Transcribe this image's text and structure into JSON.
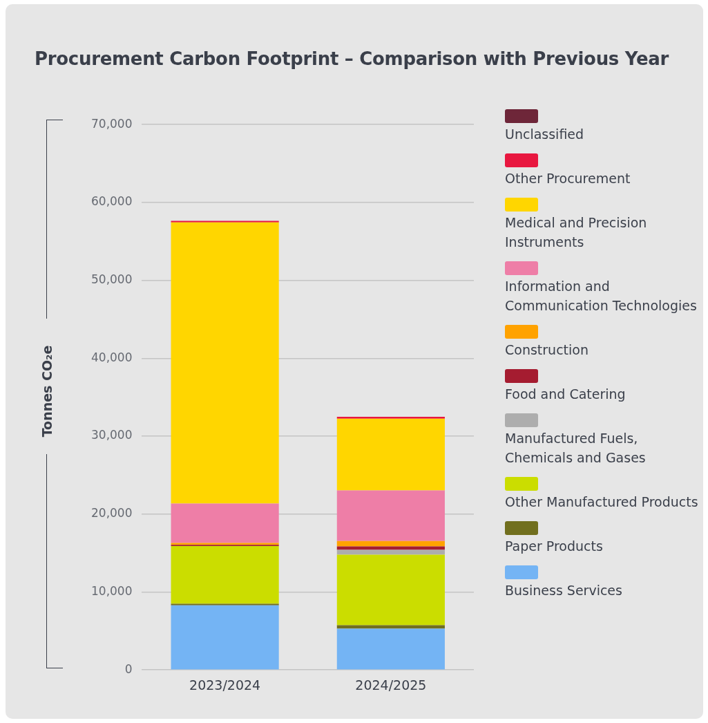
{
  "chart_data": {
    "type": "bar",
    "title": "Procurement Carbon Footprint – Comparison with Previous Year",
    "ylabel": "Tonnes CO₂e",
    "categories": [
      "2023/2024",
      "2024/2025"
    ],
    "stacked": true,
    "ylim": [
      0,
      70000
    ],
    "yticks": [
      {
        "value": 0,
        "label": "0"
      },
      {
        "value": 10000,
        "label": "10,000"
      },
      {
        "value": 20000,
        "label": "20,000"
      },
      {
        "value": 30000,
        "label": "30,000"
      },
      {
        "value": 40000,
        "label": "40,000"
      },
      {
        "value": 50000,
        "label": "50,000"
      },
      {
        "value": 60000,
        "label": "60,000"
      },
      {
        "value": 70000,
        "label": "70,000"
      }
    ],
    "grid": "y",
    "legend": "right",
    "series": [
      {
        "name": "Business Services",
        "color": "#74b4f4",
        "values": [
          8300,
          5300
        ]
      },
      {
        "name": "Paper Products",
        "color": "#716f1e",
        "values": [
          200,
          450
        ]
      },
      {
        "name": "Other Manufactured Products",
        "color": "#cbdd00",
        "values": [
          7400,
          9050
        ]
      },
      {
        "name": "Manufactured Fuels, Chemicals and Gases",
        "color": "#adadad",
        "values": [
          0,
          600
        ]
      },
      {
        "name": "Food and Catering",
        "color": "#a51c30",
        "values": [
          150,
          450
        ]
      },
      {
        "name": "Construction",
        "color": "#ffa200",
        "values": [
          250,
          700
        ]
      },
      {
        "name": "Information and Communication Technologies",
        "color": "#ee7ea7",
        "values": [
          5050,
          6500
        ]
      },
      {
        "name": "Medical and Precision Instruments",
        "color": "#ffd600",
        "values": [
          36100,
          9200
        ]
      },
      {
        "name": "Other Procurement",
        "color": "#e8173f",
        "values": [
          200,
          250
        ]
      },
      {
        "name": "Unclassified",
        "color": "#6e2639",
        "values": [
          0,
          0
        ]
      }
    ]
  }
}
